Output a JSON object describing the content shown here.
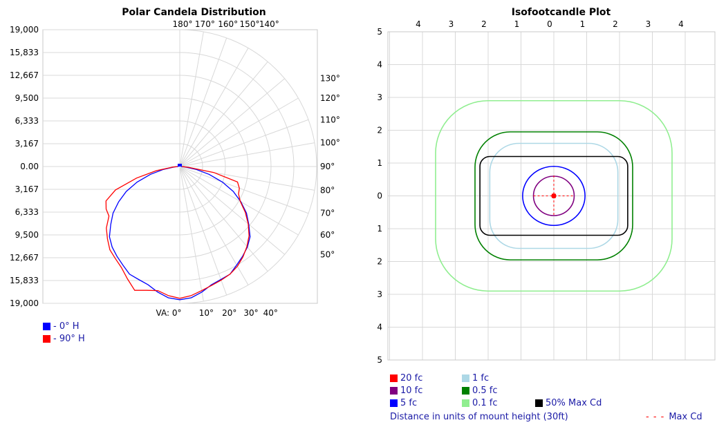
{
  "chart_data": [
    {
      "type": "polar",
      "title": "Polar Candela Distribution",
      "radial_tick_labels": [
        "19,000",
        "15,833",
        "12,667",
        "9,500",
        "6,333",
        "3,167",
        "0.00",
        "3,167",
        "6,333",
        "9,500",
        "12,667",
        "15,833",
        "19,000"
      ],
      "radial_max": 19000,
      "top_angle_labels": [
        "180°",
        "170°",
        "160°",
        "150°",
        "140°"
      ],
      "right_angle_labels": [
        "130°",
        "120°",
        "110°",
        "100°",
        "90°",
        "80°",
        "70°",
        "60°",
        "50°"
      ],
      "bottom_angle_labels": [
        "VA: 0°",
        "10°",
        "20°",
        "30°",
        "40°"
      ],
      "angle_values": [
        0,
        5,
        10,
        15,
        20,
        25,
        30,
        35,
        40,
        45,
        50,
        55,
        60,
        65,
        70,
        75,
        80,
        85,
        90
      ],
      "series": [
        {
          "name": "- 0° H",
          "color": "#0000ff",
          "values": [
            18500,
            18300,
            17700,
            17000,
            16700,
            16500,
            15800,
            15200,
            14600,
            13800,
            12500,
            11300,
            9800,
            8200,
            6300,
            4200,
            2300,
            800,
            200
          ]
        },
        {
          "name": "- 90° H",
          "color": "#ff0000",
          "values": [
            18300,
            18000,
            17500,
            17800,
            18300,
            17200,
            16200,
            15600,
            15100,
            14200,
            13300,
            12000,
            11800,
            11300,
            9500,
            6200,
            3300,
            1000,
            300
          ]
        }
      ],
      "mirror_series": [
        {
          "name": "- 90° H",
          "color": "#ff0000",
          "values": [
            18300,
            18000,
            17500,
            17100,
            16800,
            16500,
            16000,
            15300,
            14500,
            13600,
            12400,
            11100,
            9700,
            9000,
            8800,
            8300,
            4800,
            1200,
            300
          ]
        }
      ]
    },
    {
      "type": "contour",
      "title": "Isofootcandle Plot",
      "x_tick_labels": [
        "4",
        "3",
        "2",
        "1",
        "0",
        "1",
        "2",
        "3",
        "4"
      ],
      "y_tick_labels": [
        "5",
        "4",
        "3",
        "2",
        "1",
        "0",
        "1",
        "2",
        "3",
        "4",
        "5"
      ],
      "x_range": [
        -5,
        4.5
      ],
      "y_range": [
        -5,
        5
      ],
      "grid": true,
      "contours": [
        {
          "label": "0.1 fc",
          "color": "#90ee90",
          "half_width": 3.6,
          "half_height": 2.9
        },
        {
          "label": "0.5 fc",
          "color": "#008000",
          "half_width": 2.4,
          "half_height": 1.95
        },
        {
          "label": "1 fc",
          "color": "#add8e6",
          "half_width": 1.95,
          "half_height": 1.6
        },
        {
          "label": "50% Max Cd",
          "color": "#000000",
          "half_width": 2.25,
          "half_height": 1.2
        },
        {
          "label": "5 fc",
          "color": "#0000ff",
          "half_width": 0.95,
          "half_height": 0.9
        },
        {
          "label": "10 fc",
          "color": "#800080",
          "half_width": 0.62,
          "half_height": 0.6
        },
        {
          "label": "20 fc",
          "color": "#ff0000",
          "half_width": 0.06,
          "half_height": 0.06
        }
      ],
      "max_cd": {
        "label": "Max Cd",
        "x": 0,
        "y": 0,
        "arm": 0.62
      }
    }
  ],
  "polar_legend": [
    {
      "label": "- 0° H",
      "color": "#0000ff"
    },
    {
      "label": "- 90° H",
      "color": "#ff0000"
    }
  ],
  "iso_legend": {
    "col1": [
      {
        "label": "20 fc",
        "color": "#ff0000"
      },
      {
        "label": "10 fc",
        "color": "#800080"
      },
      {
        "label": "5 fc",
        "color": "#0000ff"
      }
    ],
    "col2": [
      {
        "label": "1 fc",
        "color": "#add8e6"
      },
      {
        "label": "0.5 fc",
        "color": "#008000"
      },
      {
        "label": "0.1 fc",
        "color": "#90ee90"
      }
    ],
    "col3": [
      {
        "label": "50% Max Cd",
        "color": "#000000"
      }
    ]
  },
  "iso_note": "Distance in units of mount height (30ft)",
  "iso_maxcd_label": "Max Cd",
  "iso_maxcd_dash": "- - -"
}
